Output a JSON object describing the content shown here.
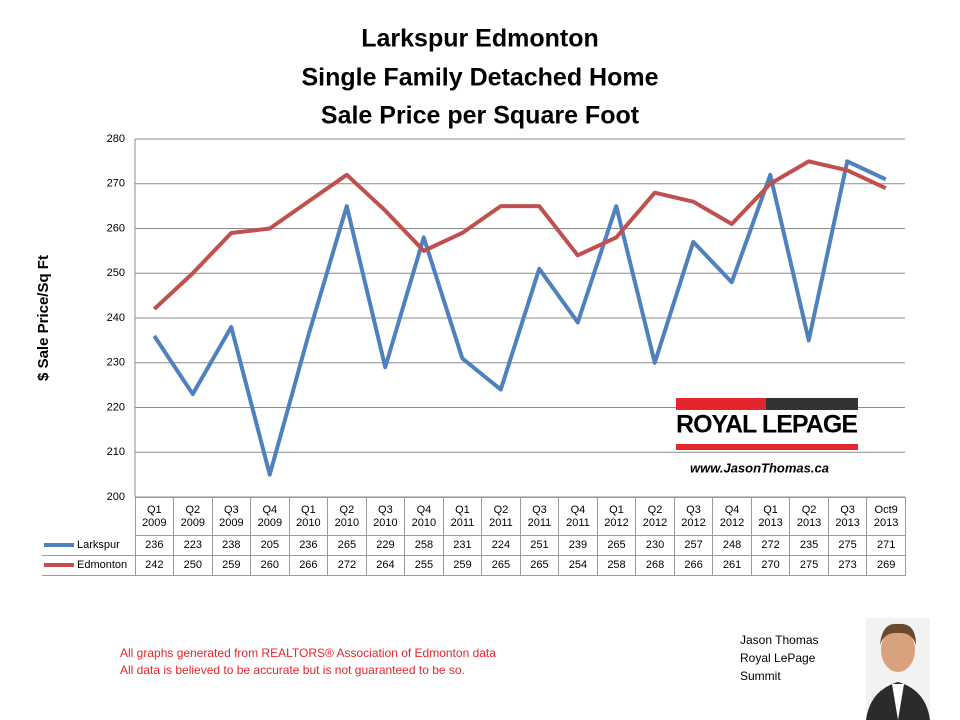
{
  "chart_data": {
    "type": "line",
    "title": [
      "Larkspur Edmonton",
      "Single Family Detached Home",
      "Sale Price per Square Foot"
    ],
    "y_label": "$ Sale Price/Sq Ft",
    "categories": [
      "Q1 2009",
      "Q2 2009",
      "Q3 2009",
      "Q4 2009",
      "Q1 2010",
      "Q2 2010",
      "Q3 2010",
      "Q4 2010",
      "Q1 2011",
      "Q2 2011",
      "Q3 2011",
      "Q4 2011",
      "Q1 2012",
      "Q2 2012",
      "Q3 2012",
      "Q4 2012",
      "Q1 2013",
      "Q2 2013",
      "Q3 2013",
      "Oct9 2013"
    ],
    "series": [
      {
        "name": "Larkspur",
        "color": "#4f81bd",
        "values": [
          236,
          223,
          238,
          205,
          236,
          265,
          229,
          258,
          231,
          224,
          251,
          239,
          265,
          230,
          257,
          248,
          272,
          235,
          275,
          271
        ]
      },
      {
        "name": "Edmonton",
        "color": "#c0504d",
        "values": [
          242,
          250,
          259,
          260,
          266,
          272,
          264,
          255,
          259,
          265,
          265,
          254,
          258,
          268,
          266,
          261,
          270,
          275,
          273,
          269
        ]
      }
    ],
    "ylim": [
      200,
      280
    ],
    "yticks": [
      200,
      210,
      220,
      230,
      240,
      250,
      260,
      270,
      280
    ],
    "grid": true
  },
  "logo": {
    "brand": "ROYAL LEPAGE",
    "url": "www.JasonThomas.ca"
  },
  "footer": [
    "All graphs generated from REALTORS® Association of Edmonton data",
    "All data is believed to be accurate but is not guaranteed to be so."
  ],
  "author": [
    "Jason Thomas",
    "Royal LePage",
    "Summit"
  ]
}
